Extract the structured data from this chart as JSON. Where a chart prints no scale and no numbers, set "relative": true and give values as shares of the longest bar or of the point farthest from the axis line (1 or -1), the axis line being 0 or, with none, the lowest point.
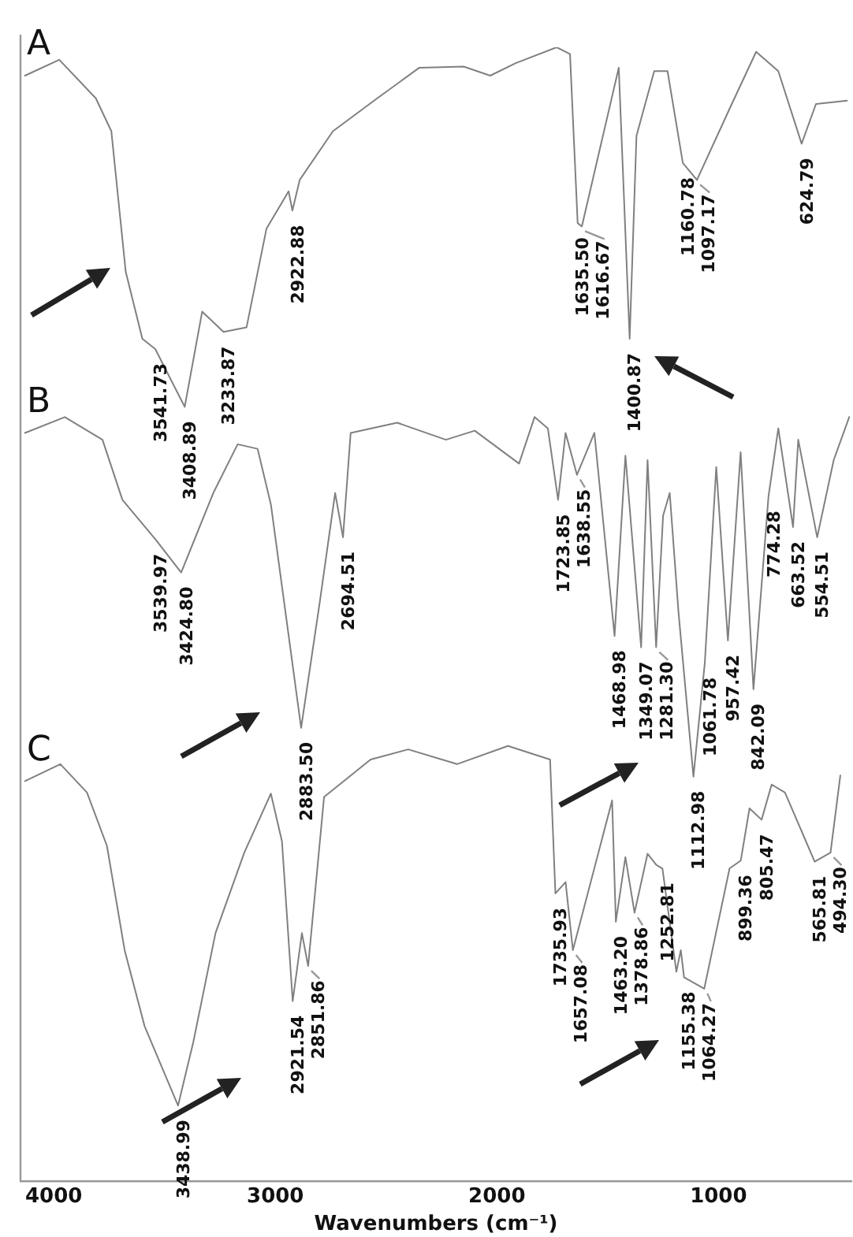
{
  "chart_data": {
    "type": "line",
    "relative": true,
    "xlabel": "Wavenumbers (cm⁻¹)",
    "xlim": [
      4150,
      400
    ],
    "xticks": [
      4000,
      3000,
      2000,
      1000
    ],
    "grid": false,
    "legend": false,
    "marker": "none",
    "line_style": "solid",
    "series": [
      {
        "name": "A",
        "color": "#808080",
        "x": [
          4130,
          3975,
          3810,
          3740,
          3675,
          3600,
          3541.73,
          3408.89,
          3330,
          3233.87,
          3130,
          3040,
          2940,
          2922.88,
          2890,
          2740,
          2540,
          2350,
          2150,
          2030,
          1915,
          1730,
          1670,
          1635.5,
          1616.67,
          1450,
          1400.87,
          1370,
          1290,
          1230,
          1160.78,
          1097.17,
          940,
          830,
          730,
          624.79,
          560,
          420
        ],
        "values": [
          0.975,
          0.989,
          0.955,
          0.926,
          0.802,
          0.743,
          0.734,
          0.683,
          0.767,
          0.749,
          0.753,
          0.84,
          0.873,
          0.856,
          0.883,
          0.926,
          0.955,
          0.982,
          0.983,
          0.975,
          0.986,
          1,
          0.994,
          0.845,
          0.842,
          0.982,
          0.743,
          0.922,
          0.979,
          0.979,
          0.898,
          0.883,
          0.95,
          0.996,
          0.979,
          0.915,
          0.95,
          0.953
        ]
      },
      {
        "name": "B",
        "color": "#808080",
        "x": [
          4130,
          3950,
          3780,
          3690,
          3539.97,
          3424.8,
          3280,
          3170,
          3080,
          3020,
          2883.5,
          2800,
          2730,
          2694.51,
          2660,
          2450,
          2230,
          2100,
          1900,
          1830,
          1770,
          1723.85,
          1690,
          1638.55,
          1560,
          1468.98,
          1420,
          1349.07,
          1320,
          1281.3,
          1250,
          1220,
          1180,
          1112.98,
          1061.78,
          1010,
          957.42,
          900,
          842.09,
          774.28,
          730,
          663.52,
          640,
          554.51,
          480,
          410
        ],
        "values": [
          0.66,
          0.674,
          0.654,
          0.601,
          0.566,
          0.537,
          0.607,
          0.65,
          0.646,
          0.597,
          0.4,
          0.51,
          0.607,
          0.568,
          0.66,
          0.669,
          0.654,
          0.662,
          0.633,
          0.674,
          0.664,
          0.601,
          0.66,
          0.623,
          0.66,
          0.481,
          0.64,
          0.471,
          0.636,
          0.471,
          0.587,
          0.607,
          0.501,
          0.357,
          0.457,
          0.63,
          0.477,
          0.643,
          0.434,
          0.604,
          0.664,
          0.577,
          0.654,
          0.568,
          0.636,
          0.674
        ]
      },
      {
        "name": "C",
        "color": "#808080",
        "x": [
          4130,
          3970,
          3850,
          3760,
          3680,
          3590,
          3438.99,
          3370,
          3270,
          3140,
          3020,
          2970,
          2921.54,
          2880,
          2851.86,
          2780,
          2570,
          2400,
          2180,
          1950,
          1760,
          1735.93,
          1690,
          1657.08,
          1480,
          1463.2,
          1420,
          1378.86,
          1320,
          1280,
          1252.81,
          1190,
          1170,
          1155.38,
          1064.27,
          950,
          899.36,
          860,
          805.47,
          760,
          700,
          565.81,
          494.3,
          450
        ],
        "values": [
          0.353,
          0.368,
          0.343,
          0.296,
          0.204,
          0.137,
          0.067,
          0.123,
          0.219,
          0.29,
          0.342,
          0.3,
          0.159,
          0.219,
          0.19,
          0.339,
          0.372,
          0.381,
          0.368,
          0.384,
          0.372,
          0.254,
          0.264,
          0.204,
          0.336,
          0.229,
          0.286,
          0.237,
          0.289,
          0.279,
          0.276,
          0.185,
          0.204,
          0.18,
          0.17,
          0.276,
          0.283,
          0.329,
          0.319,
          0.35,
          0.343,
          0.282,
          0.29,
          0.358
        ]
      }
    ],
    "annotations": [
      {
        "text": "3541.73",
        "x": 3541.73,
        "y": 0.734
      },
      {
        "text": "3408.89",
        "x": 3408.89,
        "y": 0.683
      },
      {
        "text": "3233.87",
        "x": 3233.87,
        "y": 0.749
      },
      {
        "text": "2922.88",
        "x": 2922.88,
        "y": 0.856
      },
      {
        "text": "1635.50",
        "x": 1635.5,
        "y": 0.845
      },
      {
        "text": "1616.67",
        "x": 1616.67,
        "y": 0.842
      },
      {
        "text": "1400.87",
        "x": 1400.87,
        "y": 0.743
      },
      {
        "text": "1160.78",
        "x": 1160.78,
        "y": 0.898
      },
      {
        "text": "1097.17",
        "x": 1097.17,
        "y": 0.883
      },
      {
        "text": "624.79",
        "x": 624.79,
        "y": 0.915
      },
      {
        "text": "3539.97",
        "x": 3539.97,
        "y": 0.566
      },
      {
        "text": "3424.80",
        "x": 3424.8,
        "y": 0.537
      },
      {
        "text": "2883.50",
        "x": 2883.5,
        "y": 0.4
      },
      {
        "text": "2694.51",
        "x": 2694.51,
        "y": 0.568
      },
      {
        "text": "1723.85",
        "x": 1723.85,
        "y": 0.601
      },
      {
        "text": "1638.55",
        "x": 1638.55,
        "y": 0.623
      },
      {
        "text": "1468.98",
        "x": 1468.98,
        "y": 0.481
      },
      {
        "text": "1349.07",
        "x": 1349.07,
        "y": 0.471
      },
      {
        "text": "1281.30",
        "x": 1281.3,
        "y": 0.471
      },
      {
        "text": "1112.98",
        "x": 1112.98,
        "y": 0.357
      },
      {
        "text": "1061.78",
        "x": 1061.78,
        "y": 0.457
      },
      {
        "text": "957.42",
        "x": 957.42,
        "y": 0.477
      },
      {
        "text": "842.09",
        "x": 842.09,
        "y": 0.434
      },
      {
        "text": "774.28",
        "x": 774.28,
        "y": 0.604
      },
      {
        "text": "663.52",
        "x": 663.52,
        "y": 0.577
      },
      {
        "text": "554.51",
        "x": 554.51,
        "y": 0.568
      },
      {
        "text": "3438.99",
        "x": 3438.99,
        "y": 0.067
      },
      {
        "text": "2921.54",
        "x": 2921.54,
        "y": 0.159
      },
      {
        "text": "2851.86",
        "x": 2851.86,
        "y": 0.19
      },
      {
        "text": "1735.93",
        "x": 1735.93,
        "y": 0.254
      },
      {
        "text": "1657.08",
        "x": 1657.08,
        "y": 0.204
      },
      {
        "text": "1463.20",
        "x": 1463.2,
        "y": 0.229
      },
      {
        "text": "1378.86",
        "x": 1378.86,
        "y": 0.237
      },
      {
        "text": "1252.81",
        "x": 1252.81,
        "y": 0.276
      },
      {
        "text": "1155.38",
        "x": 1155.38,
        "y": 0.18
      },
      {
        "text": "1064.27",
        "x": 1064.27,
        "y": 0.17
      },
      {
        "text": "899.36",
        "x": 899.36,
        "y": 0.283
      },
      {
        "text": "805.47",
        "x": 805.47,
        "y": 0.319
      },
      {
        "text": "565.81",
        "x": 565.81,
        "y": 0.282
      },
      {
        "text": "494.30",
        "x": 494.3,
        "y": 0.29
      }
    ]
  }
}
